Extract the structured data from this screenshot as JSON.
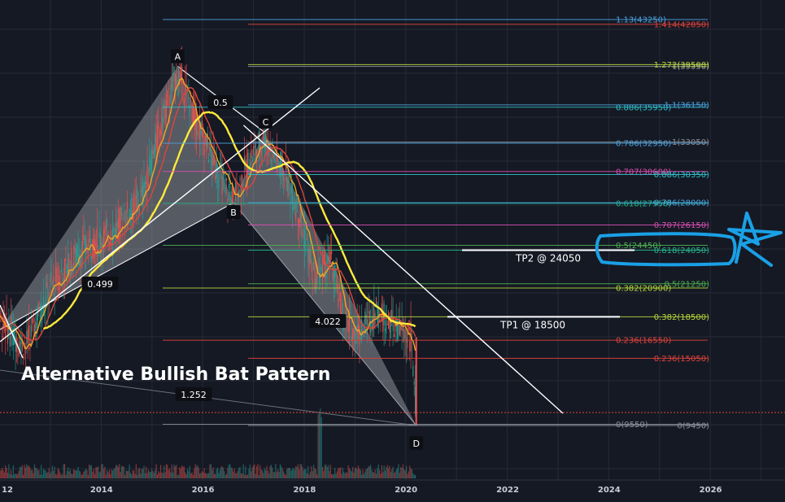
{
  "chart_data": {
    "type": "line",
    "title": "Alternative Bullish Bat Pattern",
    "x_axis": {
      "ticks": [
        "12",
        "2014",
        "2016",
        "2018",
        "2020",
        "2022",
        "2024",
        "2026"
      ]
    },
    "pattern_points": [
      {
        "name": "A",
        "year": 2015.5,
        "value": 39350
      },
      {
        "name": "B",
        "year": 2016.6,
        "value": 28000
      },
      {
        "name": "C",
        "year": 2017.2,
        "value": 33900
      },
      {
        "name": "D",
        "year": 2020.2,
        "value": 9450
      }
    ],
    "ratios": [
      {
        "text": "0.5",
        "role": "AC"
      },
      {
        "text": "0.499",
        "role": "XB"
      },
      {
        "text": "4.022",
        "role": "BD"
      },
      {
        "text": "1.252",
        "role": "XD"
      }
    ],
    "fib_levels": [
      {
        "text": "1.13(43250)",
        "color": "#4aa3df",
        "value": 43250,
        "x1frac": 0.0
      },
      {
        "text": "1.414(42850)",
        "color": "#e0443c",
        "value": 42850,
        "x1frac": 0.25
      },
      {
        "text": "1(39350)",
        "color": "#8a8f99",
        "value": 39350,
        "x1frac": 0.25
      },
      {
        "text": "1.272(39500)",
        "color": "#b5d63b",
        "value": 39500,
        "x1frac": 0.25
      },
      {
        "text": "0.886(35950)",
        "color": "#2fc0c8",
        "value": 35950,
        "x1frac": 0.0
      },
      {
        "text": "1.1(36150)",
        "color": "#4aa3df",
        "value": 36150,
        "x1frac": 0.25
      },
      {
        "text": "0.786(32950)",
        "color": "#4aa3df",
        "value": 32950,
        "x1frac": 0.0
      },
      {
        "text": "1(33050)",
        "color": "#8a8f99",
        "value": 33050,
        "x1frac": 0.25
      },
      {
        "text": "0.707(30600)",
        "color": "#d94fb1",
        "value": 30600,
        "x1frac": 0.0
      },
      {
        "text": "0.886(30350)",
        "color": "#2fc0c8",
        "value": 30350,
        "x1frac": 0.25
      },
      {
        "text": "0.618(27950)",
        "color": "#21b58a",
        "value": 27950,
        "x1frac": 0.0
      },
      {
        "text": "0.786(28000)",
        "color": "#4aa3df",
        "value": 28000,
        "x1frac": 0.25
      },
      {
        "text": "0.707(26150)",
        "color": "#d94fb1",
        "value": 26150,
        "x1frac": 0.25
      },
      {
        "text": "0.5(24450)",
        "color": "#4caf50",
        "value": 24450,
        "x1frac": 0.0
      },
      {
        "text": "0.618(24050)",
        "color": "#21b58a",
        "value": 24050,
        "x1frac": 0.25
      },
      {
        "text": "0.5(21250)",
        "color": "#4caf50",
        "value": 21250,
        "x1frac": 0.25
      },
      {
        "text": "0.382(20900)",
        "color": "#b5d63b",
        "value": 20900,
        "x1frac": 0.0
      },
      {
        "text": "0.382(18500)",
        "color": "#b5d63b",
        "value": 18500,
        "x1frac": 0.25
      },
      {
        "text": "0.236(16550)",
        "color": "#e0443c",
        "value": 16550,
        "x1frac": 0.0
      },
      {
        "text": "0.236(15050)",
        "color": "#e0443c",
        "value": 15050,
        "x1frac": 0.25
      },
      {
        "text": "0(9550)",
        "color": "#8a8f99",
        "value": 9550,
        "x1frac": 0.0
      },
      {
        "text": "0(9450)",
        "color": "#8a8f99",
        "value": 9450,
        "x1frac": 0.25
      }
    ],
    "targets": [
      {
        "text": "TP2 @ 24050",
        "value": 24050
      },
      {
        "text": "TP1 @ 18500",
        "value": 18500
      }
    ],
    "colors": {
      "background": "#151924",
      "grid": "#252a36",
      "candle_up": "#26a69a",
      "candle_down": "#ef5350",
      "ma_fast": "#f5a623",
      "ma_mid": "#e0443c",
      "ma_slow": "#ffeb3b",
      "pattern_fill": "#d0d3da",
      "markup": "#1aa0e6"
    }
  }
}
